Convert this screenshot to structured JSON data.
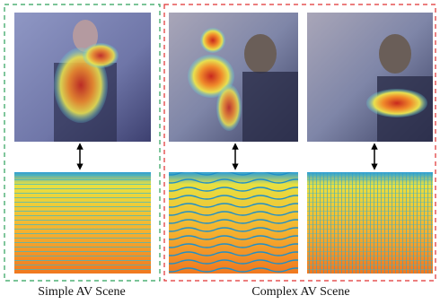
{
  "captions": {
    "simple": "Simple AV Scene",
    "complex": "Complex AV Scene"
  }
}
